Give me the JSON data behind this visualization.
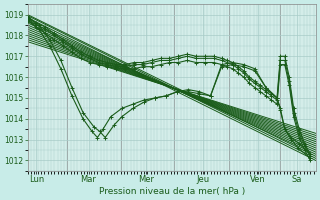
{
  "xlabel": "Pression niveau de la mer( hPa )",
  "bg_color": "#c8ece8",
  "plot_bg_color": "#d4ede9",
  "line_color": "#1a5c1a",
  "grid_color": "#a8ccc8",
  "tick_label_color": "#1a5c1a",
  "axis_label_color": "#1a5c1a",
  "ylim": [
    1011.5,
    1019.5
  ],
  "yticks": [
    1012,
    1013,
    1014,
    1015,
    1016,
    1017,
    1018,
    1019
  ],
  "xlim": [
    0,
    260
  ],
  "days": [
    "Lun",
    "Mar",
    "Mer",
    "Jeu",
    "Ven",
    "Sa"
  ],
  "day_positions": [
    8,
    55,
    107,
    158,
    208,
    243
  ],
  "vline_positions": [
    36,
    84,
    132,
    182,
    228
  ],
  "series": [
    [
      [
        0,
        1018.85
      ],
      [
        260,
        1012.0
      ]
    ],
    [
      [
        0,
        1018.95
      ],
      [
        260,
        1012.1
      ]
    ],
    [
      [
        0,
        1019.0
      ],
      [
        260,
        1012.2
      ]
    ],
    [
      [
        0,
        1018.7
      ],
      [
        260,
        1012.3
      ]
    ],
    [
      [
        0,
        1018.6
      ],
      [
        260,
        1012.4
      ]
    ],
    [
      [
        0,
        1018.5
      ],
      [
        260,
        1012.5
      ]
    ],
    [
      [
        0,
        1018.4
      ],
      [
        260,
        1012.6
      ]
    ],
    [
      [
        0,
        1018.3
      ],
      [
        260,
        1012.7
      ]
    ],
    [
      [
        0,
        1018.2
      ],
      [
        260,
        1012.8
      ]
    ],
    [
      [
        0,
        1018.1
      ],
      [
        260,
        1012.9
      ]
    ],
    [
      [
        0,
        1018.0
      ],
      [
        260,
        1013.0
      ]
    ],
    [
      [
        0,
        1017.9
      ],
      [
        260,
        1013.1
      ]
    ],
    [
      [
        0,
        1017.8
      ],
      [
        260,
        1013.2
      ]
    ],
    [
      [
        0,
        1017.7
      ],
      [
        260,
        1013.3
      ]
    ]
  ],
  "curved_series": [
    [
      [
        0,
        1018.85
      ],
      [
        10,
        1018.5
      ],
      [
        20,
        1017.8
      ],
      [
        30,
        1016.8
      ],
      [
        40,
        1015.5
      ],
      [
        50,
        1014.3
      ],
      [
        60,
        1013.6
      ],
      [
        65,
        1013.4
      ],
      [
        70,
        1013.1
      ],
      [
        78,
        1013.7
      ],
      [
        85,
        1014.1
      ],
      [
        95,
        1014.5
      ],
      [
        105,
        1014.8
      ],
      [
        115,
        1015.0
      ],
      [
        125,
        1015.1
      ],
      [
        135,
        1015.3
      ],
      [
        145,
        1015.3
      ],
      [
        155,
        1015.2
      ],
      [
        165,
        1015.1
      ],
      [
        175,
        1016.5
      ],
      [
        185,
        1016.6
      ],
      [
        195,
        1016.5
      ],
      [
        205,
        1016.3
      ],
      [
        215,
        1015.5
      ],
      [
        225,
        1015.0
      ],
      [
        228,
        1014.5
      ],
      [
        232,
        1013.5
      ],
      [
        238,
        1013.1
      ],
      [
        245,
        1012.8
      ],
      [
        255,
        1012.3
      ]
    ],
    [
      [
        0,
        1018.75
      ],
      [
        10,
        1018.3
      ],
      [
        20,
        1017.5
      ],
      [
        30,
        1016.4
      ],
      [
        40,
        1015.1
      ],
      [
        50,
        1014.0
      ],
      [
        58,
        1013.4
      ],
      [
        63,
        1013.1
      ],
      [
        68,
        1013.5
      ],
      [
        75,
        1014.1
      ],
      [
        85,
        1014.5
      ],
      [
        95,
        1014.7
      ],
      [
        105,
        1014.9
      ],
      [
        115,
        1015.0
      ],
      [
        125,
        1015.1
      ],
      [
        135,
        1015.3
      ],
      [
        145,
        1015.4
      ],
      [
        155,
        1015.3
      ],
      [
        165,
        1015.1
      ],
      [
        175,
        1016.6
      ],
      [
        185,
        1016.7
      ],
      [
        195,
        1016.6
      ],
      [
        205,
        1016.4
      ],
      [
        215,
        1015.5
      ],
      [
        225,
        1015.0
      ],
      [
        228,
        1014.4
      ],
      [
        232,
        1013.5
      ],
      [
        238,
        1013.0
      ],
      [
        244,
        1012.6
      ],
      [
        255,
        1012.1
      ]
    ],
    [
      [
        0,
        1018.9
      ],
      [
        8,
        1018.6
      ],
      [
        16,
        1018.4
      ],
      [
        24,
        1018.1
      ],
      [
        32,
        1017.8
      ],
      [
        40,
        1017.5
      ],
      [
        48,
        1017.2
      ],
      [
        56,
        1017.0
      ],
      [
        64,
        1016.8
      ],
      [
        72,
        1016.7
      ],
      [
        80,
        1016.6
      ],
      [
        88,
        1016.6
      ],
      [
        96,
        1016.7
      ],
      [
        104,
        1016.7
      ],
      [
        112,
        1016.8
      ],
      [
        120,
        1016.9
      ],
      [
        128,
        1016.9
      ],
      [
        136,
        1017.0
      ],
      [
        144,
        1017.1
      ],
      [
        152,
        1017.0
      ],
      [
        160,
        1017.0
      ],
      [
        168,
        1017.0
      ],
      [
        175,
        1016.9
      ],
      [
        180,
        1016.8
      ],
      [
        185,
        1016.7
      ],
      [
        190,
        1016.5
      ],
      [
        195,
        1016.3
      ],
      [
        200,
        1016.0
      ],
      [
        205,
        1015.8
      ],
      [
        210,
        1015.6
      ],
      [
        215,
        1015.4
      ],
      [
        220,
        1015.2
      ],
      [
        225,
        1015.0
      ],
      [
        228,
        1017.0
      ],
      [
        232,
        1017.0
      ],
      [
        236,
        1016.0
      ],
      [
        240,
        1014.5
      ],
      [
        245,
        1013.5
      ],
      [
        250,
        1012.8
      ],
      [
        255,
        1012.3
      ]
    ],
    [
      [
        0,
        1018.8
      ],
      [
        8,
        1018.5
      ],
      [
        16,
        1018.3
      ],
      [
        24,
        1018.0
      ],
      [
        32,
        1017.7
      ],
      [
        40,
        1017.4
      ],
      [
        48,
        1017.1
      ],
      [
        56,
        1016.9
      ],
      [
        64,
        1016.7
      ],
      [
        72,
        1016.6
      ],
      [
        80,
        1016.5
      ],
      [
        88,
        1016.5
      ],
      [
        96,
        1016.6
      ],
      [
        104,
        1016.6
      ],
      [
        112,
        1016.7
      ],
      [
        120,
        1016.8
      ],
      [
        128,
        1016.8
      ],
      [
        136,
        1016.9
      ],
      [
        144,
        1017.0
      ],
      [
        152,
        1016.9
      ],
      [
        160,
        1016.9
      ],
      [
        168,
        1016.9
      ],
      [
        175,
        1016.8
      ],
      [
        180,
        1016.7
      ],
      [
        185,
        1016.6
      ],
      [
        190,
        1016.4
      ],
      [
        195,
        1016.2
      ],
      [
        200,
        1015.9
      ],
      [
        205,
        1015.7
      ],
      [
        210,
        1015.5
      ],
      [
        215,
        1015.3
      ],
      [
        220,
        1015.1
      ],
      [
        225,
        1014.9
      ],
      [
        228,
        1016.8
      ],
      [
        232,
        1016.8
      ],
      [
        236,
        1015.8
      ],
      [
        240,
        1014.3
      ],
      [
        245,
        1013.3
      ],
      [
        250,
        1012.7
      ],
      [
        255,
        1012.2
      ]
    ],
    [
      [
        0,
        1018.7
      ],
      [
        8,
        1018.4
      ],
      [
        16,
        1018.1
      ],
      [
        24,
        1017.8
      ],
      [
        32,
        1017.5
      ],
      [
        40,
        1017.2
      ],
      [
        48,
        1016.9
      ],
      [
        56,
        1016.7
      ],
      [
        64,
        1016.6
      ],
      [
        72,
        1016.5
      ],
      [
        80,
        1016.4
      ],
      [
        88,
        1016.4
      ],
      [
        96,
        1016.4
      ],
      [
        104,
        1016.5
      ],
      [
        112,
        1016.5
      ],
      [
        120,
        1016.6
      ],
      [
        128,
        1016.7
      ],
      [
        136,
        1016.7
      ],
      [
        144,
        1016.8
      ],
      [
        152,
        1016.7
      ],
      [
        160,
        1016.7
      ],
      [
        168,
        1016.7
      ],
      [
        175,
        1016.6
      ],
      [
        180,
        1016.5
      ],
      [
        185,
        1016.4
      ],
      [
        190,
        1016.2
      ],
      [
        195,
        1016.0
      ],
      [
        200,
        1015.7
      ],
      [
        205,
        1015.5
      ],
      [
        210,
        1015.3
      ],
      [
        215,
        1015.1
      ],
      [
        220,
        1014.9
      ],
      [
        225,
        1014.7
      ],
      [
        228,
        1016.6
      ],
      [
        232,
        1016.6
      ],
      [
        236,
        1015.6
      ],
      [
        240,
        1014.1
      ],
      [
        245,
        1013.1
      ],
      [
        250,
        1012.5
      ],
      [
        255,
        1012.0
      ]
    ]
  ]
}
